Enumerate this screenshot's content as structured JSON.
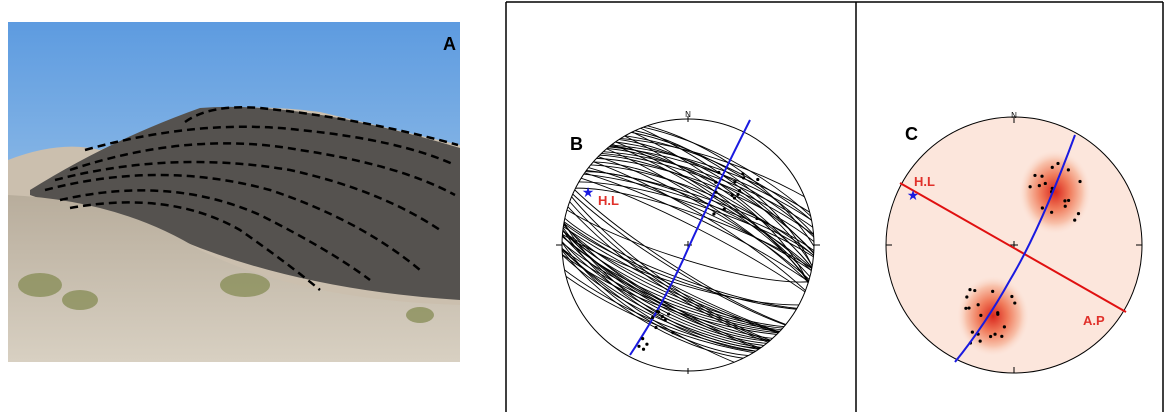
{
  "panels": [
    {
      "label": "A"
    },
    {
      "label": "B",
      "north": "N",
      "annotations": [
        "H.L"
      ]
    },
    {
      "label": "C",
      "north": "N",
      "annotations": [
        "H.L",
        "A.P"
      ]
    }
  ]
}
